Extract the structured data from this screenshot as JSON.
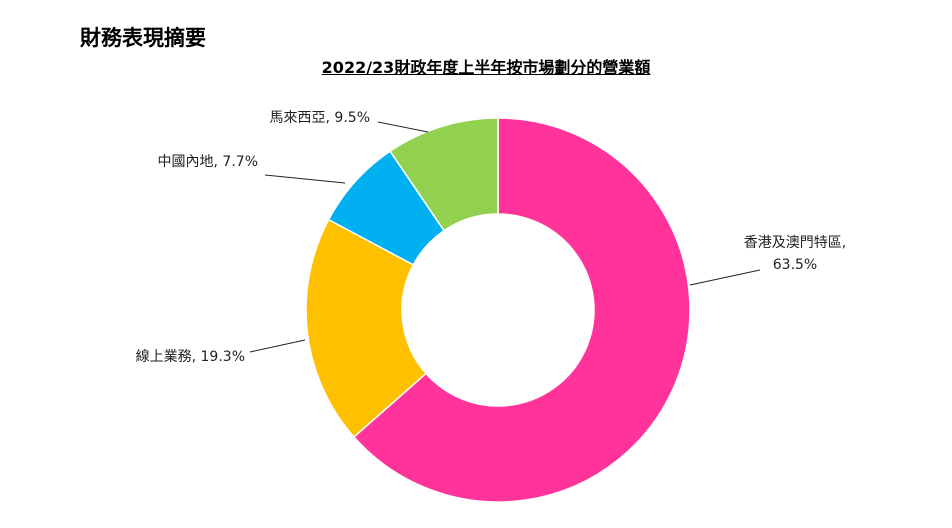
{
  "heading": "財務表現摘要",
  "chart_data": {
    "type": "donut",
    "title": "2022/23財政年度上半年按市場劃分的營業額",
    "labels": [
      "香港及澳門特區, 63.5%",
      "線上業務, 19.3%",
      "中國內地, 7.7%",
      "馬來西亞, 9.5%"
    ],
    "values": [
      63.5,
      19.3,
      7.7,
      9.5
    ],
    "colors": [
      "#FF3399",
      "#FFC000",
      "#00B0F0",
      "#92D050"
    ]
  }
}
